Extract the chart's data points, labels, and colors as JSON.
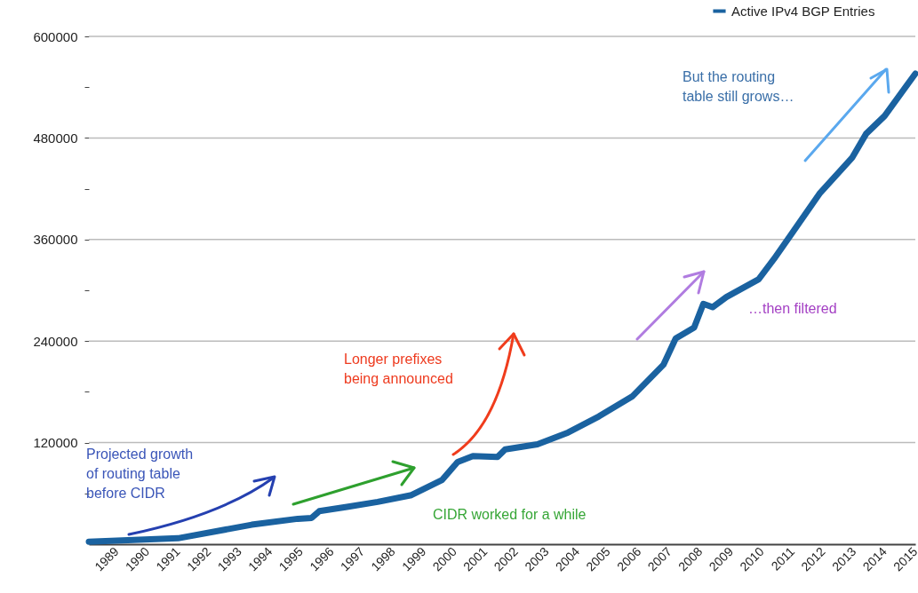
{
  "chart_data": {
    "type": "line",
    "x": [
      1988.1,
      1991.0,
      1993.4,
      1994.9,
      1995.35,
      1995.6,
      1996.5,
      1997.5,
      1998.6,
      1999.6,
      2000.1,
      2000.6,
      2001.4,
      2001.65,
      2002.7,
      2003.7,
      2004.7,
      2005.8,
      2006.8,
      2007.2,
      2007.8,
      2008.1,
      2008.4,
      2008.85,
      2009.9,
      2010.4,
      2010.9,
      2011.9,
      2012.95,
      2013.4,
      2014.0,
      2015.0
    ],
    "series": [
      {
        "name": "Active IPv4 BGP Entries",
        "color": "#1a62a0",
        "values": [
          3000,
          7000,
          23000,
          30000,
          31000,
          39000,
          44000,
          50000,
          58000,
          76000,
          97000,
          104000,
          103000,
          112000,
          118000,
          132000,
          151000,
          175000,
          212000,
          243000,
          256000,
          284000,
          280000,
          292000,
          313000,
          337000,
          363000,
          415000,
          457000,
          485000,
          506000,
          556000
        ]
      }
    ],
    "xlim": [
      1988.1,
      2015
    ],
    "xticks": [
      1989,
      1990,
      1991,
      1992,
      1993,
      1994,
      1995,
      1996,
      1997,
      1998,
      1999,
      2000,
      2001,
      2002,
      2003,
      2004,
      2005,
      2006,
      2007,
      2008,
      2009,
      2010,
      2011,
      2012,
      2013,
      2014,
      2015
    ],
    "ylim": [
      0,
      600000
    ],
    "yticks": [
      {
        "value": 60000,
        "label": null
      },
      120000,
      {
        "value": 180000,
        "label": null
      },
      240000,
      {
        "value": 300000,
        "label": null
      },
      360000,
      {
        "value": 420000,
        "label": null
      },
      480000,
      {
        "value": 540000,
        "label": null
      },
      600000
    ],
    "grid": "y",
    "legend": "top right",
    "line_style": "solid",
    "marker": "none",
    "annotations": [
      "Projected growth\nof routing table\nbefore CIDR",
      "Longer prefixes\nbeing announced",
      "CIDR worked for a while",
      "…then filtered",
      "But the routing\ntable still grows…"
    ]
  }
}
